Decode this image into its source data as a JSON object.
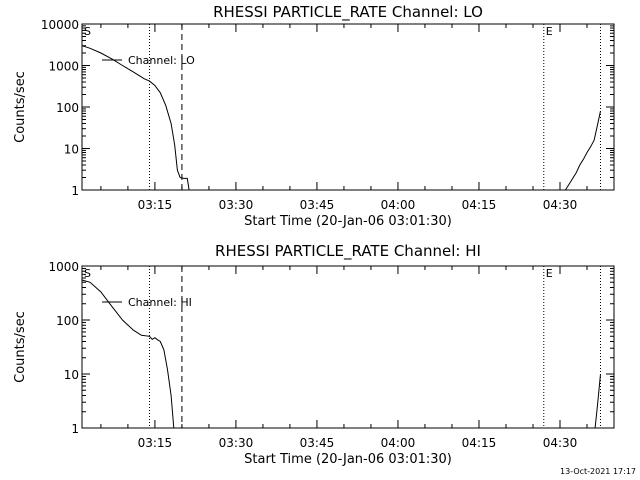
{
  "footer": {
    "timestamp": "13-Oct-2021 17:17"
  },
  "chart_data": [
    {
      "type": "line",
      "title": "RHESSI PARTICLE_RATE Channel: LO",
      "xlabel": "Start Time (20-Jan-06 03:01:30)",
      "ylabel": "Counts/sec",
      "yscale": "log",
      "xlim": [
        "03:01:30",
        "04:40:00"
      ],
      "ylim": [
        1,
        10000
      ],
      "xticks": [
        "03:15",
        "03:30",
        "03:45",
        "04:00",
        "04:15",
        "04:30"
      ],
      "yticks": [
        "1",
        "10",
        "100",
        "1000",
        "10000"
      ],
      "legend": "Channel: LO",
      "markers": [
        {
          "label": "S",
          "x": "03:01:30",
          "style": "none"
        },
        {
          "label": "",
          "x": "03:14:00",
          "style": "dotted"
        },
        {
          "label": "",
          "x": "03:20:00",
          "style": "dashed"
        },
        {
          "label": "E",
          "x": "04:27:00",
          "style": "dotted"
        },
        {
          "label": "",
          "x": "04:37:30",
          "style": "dotted"
        }
      ],
      "series": [
        {
          "segments": [
            {
              "x": [
                "03:01:30",
                "03:03:00",
                "03:05:00",
                "03:07:00",
                "03:09:00",
                "03:11:00",
                "03:13:00",
                "03:14:00",
                "03:15:00",
                "03:16:00",
                "03:17:00",
                "03:18:00",
                "03:18:40",
                "03:19:10",
                "03:19:40",
                "03:20:20",
                "03:21:00",
                "03:21:20"
              ],
              "y": [
                3000,
                2600,
                2000,
                1450,
                1000,
                700,
                480,
                420,
                330,
                220,
                110,
                40,
                12,
                3,
                2,
                1.9,
                1.9,
                1
              ]
            },
            {
              "x": [
                "04:31:00",
                "04:32:00",
                "04:33:00",
                "04:33:40",
                "04:34:20",
                "04:35:00",
                "04:35:40",
                "04:36:20",
                "04:37:00",
                "04:37:30"
              ],
              "y": [
                1,
                1.6,
                2.6,
                4,
                5.5,
                8,
                11,
                16,
                40,
                80
              ]
            }
          ]
        }
      ]
    },
    {
      "type": "line",
      "title": "RHESSI PARTICLE_RATE Channel: HI",
      "xlabel": "Start Time (20-Jan-06 03:01:30)",
      "ylabel": "Counts/sec",
      "yscale": "log",
      "xlim": [
        "03:01:30",
        "04:40:00"
      ],
      "ylim": [
        1,
        1000
      ],
      "xticks": [
        "03:15",
        "03:30",
        "03:45",
        "04:00",
        "04:15",
        "04:30"
      ],
      "yticks": [
        "1",
        "10",
        "100",
        "1000"
      ],
      "legend": "Channel: HI",
      "markers": [
        {
          "label": "S",
          "x": "03:01:30",
          "style": "none"
        },
        {
          "label": "",
          "x": "03:14:00",
          "style": "dotted"
        },
        {
          "label": "",
          "x": "03:20:00",
          "style": "dashed"
        },
        {
          "label": "E",
          "x": "04:27:00",
          "style": "dotted"
        },
        {
          "label": "",
          "x": "04:37:30",
          "style": "dotted"
        }
      ],
      "series": [
        {
          "segments": [
            {
              "x": [
                "03:01:30",
                "03:03:00",
                "03:05:00",
                "03:07:00",
                "03:09:00",
                "03:11:00",
                "03:12:30",
                "03:14:00",
                "03:14:30",
                "03:15:00",
                "03:15:30",
                "03:16:00",
                "03:16:40",
                "03:17:20",
                "03:18:00",
                "03:18:30"
              ],
              "y": [
                550,
                500,
                330,
                180,
                100,
                65,
                52,
                50,
                44,
                47,
                43,
                40,
                28,
                12,
                4,
                1
              ]
            },
            {
              "x": [
                "04:36:30",
                "04:37:00",
                "04:37:30"
              ],
              "y": [
                1,
                3,
                10
              ]
            }
          ]
        }
      ]
    }
  ]
}
